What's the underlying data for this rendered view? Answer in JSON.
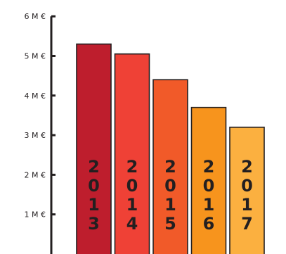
{
  "chart_data": {
    "type": "bar",
    "categories": [
      "2013",
      "2014",
      "2015",
      "2016",
      "2017"
    ],
    "values": [
      5.3,
      5.05,
      4.4,
      3.7,
      3.2
    ],
    "bar_colors": [
      "#be1e2d",
      "#ef4136",
      "#f15a29",
      "#f7941d",
      "#fbb040"
    ],
    "bar_outline_color": "#231f20",
    "axis_color": "#231f20",
    "ylim": [
      0,
      6
    ],
    "yticks": [
      1,
      2,
      3,
      4,
      5,
      6
    ],
    "ytick_labels": [
      "1 M €",
      "2 M €",
      "3 M €",
      "4 M €",
      "5 M €",
      "6 M €"
    ],
    "grid": false,
    "title": "",
    "xlabel": "",
    "ylabel": ""
  }
}
